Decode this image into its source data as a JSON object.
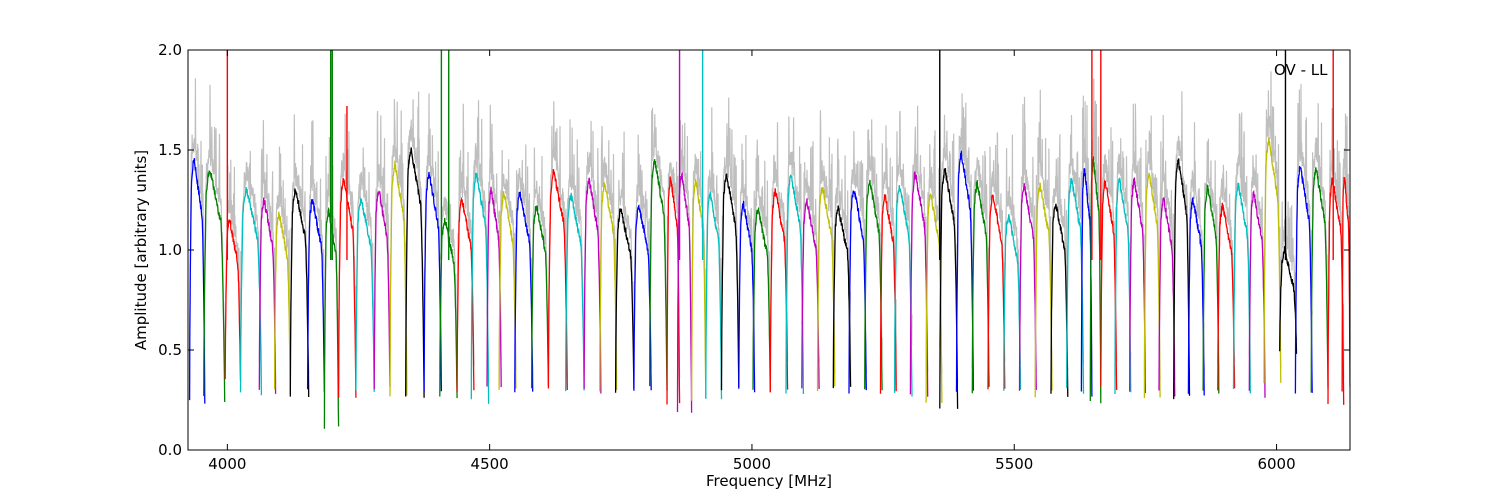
{
  "chart_data": {
    "type": "line",
    "annotation": "OV - LL",
    "xlabel": "Frequency [MHz]",
    "ylabel": "Amplitude [arbitrary units]",
    "xlim": [
      3925,
      6140
    ],
    "ylim": [
      0.0,
      2.0
    ],
    "xticks": [
      4000,
      4500,
      5000,
      5500,
      6000
    ],
    "yticks": [
      0.0,
      0.5,
      1.0,
      1.5,
      2.0
    ],
    "xtick_labels": [
      "4000",
      "4500",
      "5000",
      "5500",
      "6000"
    ],
    "ytick_labels": [
      "0.0",
      "0.5",
      "1.0",
      "1.5",
      "2.0"
    ],
    "grid": false,
    "background_color": "#bfbfbf",
    "series_colors": [
      "#0000ff",
      "#008000",
      "#ff0000",
      "#00bfbf",
      "#bf00bf",
      "#bfbf00",
      "#000000"
    ],
    "windows": [
      {
        "start": 3928,
        "end": 3957,
        "color": "#0000ff",
        "peak": 1.45,
        "floor": 0.25
      },
      {
        "start": 3955,
        "end": 3995,
        "color": "#008000",
        "peak": 1.4,
        "floor": 0.25
      },
      {
        "start": 3996,
        "end": 4025,
        "color": "#ff0000",
        "peak": 1.15,
        "floor": 0.35
      },
      {
        "start": 4025,
        "end": 4065,
        "color": "#00bfbf",
        "peak": 1.3,
        "floor": 0.28
      },
      {
        "start": 4061,
        "end": 4092,
        "color": "#bf00bf",
        "peak": 1.25,
        "floor": 0.3
      },
      {
        "start": 4090,
        "end": 4120,
        "color": "#bfbf00",
        "peak": 1.18,
        "floor": 0.3
      },
      {
        "start": 4120,
        "end": 4155,
        "color": "#000000",
        "peak": 1.3,
        "floor": 0.28
      },
      {
        "start": 4153,
        "end": 4185,
        "color": "#0000ff",
        "peak": 1.25,
        "floor": 0.3
      },
      {
        "start": 4185,
        "end": 4212,
        "color": "#008000",
        "peak": 1.2,
        "floor": 0.1
      },
      {
        "start": 4212,
        "end": 4245,
        "color": "#ff0000",
        "peak": 1.35,
        "floor": 0.28
      },
      {
        "start": 4245,
        "end": 4280,
        "color": "#00bfbf",
        "peak": 1.25,
        "floor": 0.3
      },
      {
        "start": 4280,
        "end": 4310,
        "color": "#bf00bf",
        "peak": 1.3,
        "floor": 0.3
      },
      {
        "start": 4310,
        "end": 4342,
        "color": "#bfbf00",
        "peak": 1.43,
        "floor": 0.28
      },
      {
        "start": 4340,
        "end": 4375,
        "color": "#000000",
        "peak": 1.5,
        "floor": 0.26
      },
      {
        "start": 4375,
        "end": 4408,
        "color": "#0000ff",
        "peak": 1.38,
        "floor": 0.28
      },
      {
        "start": 4405,
        "end": 4438,
        "color": "#008000",
        "peak": 1.15,
        "floor": 0.25
      },
      {
        "start": 4438,
        "end": 4470,
        "color": "#ff0000",
        "peak": 1.25,
        "floor": 0.3
      },
      {
        "start": 4465,
        "end": 4498,
        "color": "#00bfbf",
        "peak": 1.38,
        "floor": 0.25
      },
      {
        "start": 4495,
        "end": 4522,
        "color": "#bf00bf",
        "peak": 1.3,
        "floor": 0.33
      },
      {
        "start": 4518,
        "end": 4550,
        "color": "#bfbf00",
        "peak": 1.28,
        "floor": 0.3
      },
      {
        "start": 4548,
        "end": 4582,
        "color": "#0000ff",
        "peak": 1.28,
        "floor": 0.3
      },
      {
        "start": 4580,
        "end": 4612,
        "color": "#008000",
        "peak": 1.22,
        "floor": 0.3
      },
      {
        "start": 4612,
        "end": 4648,
        "color": "#ff0000",
        "peak": 1.39,
        "floor": 0.3
      },
      {
        "start": 4645,
        "end": 4680,
        "color": "#00bfbf",
        "peak": 1.27,
        "floor": 0.3
      },
      {
        "start": 4680,
        "end": 4712,
        "color": "#bf00bf",
        "peak": 1.35,
        "floor": 0.3
      },
      {
        "start": 4710,
        "end": 4742,
        "color": "#bfbf00",
        "peak": 1.33,
        "floor": 0.3
      },
      {
        "start": 4740,
        "end": 4775,
        "color": "#000000",
        "peak": 1.2,
        "floor": 0.3
      },
      {
        "start": 4775,
        "end": 4808,
        "color": "#0000ff",
        "peak": 1.22,
        "floor": 0.3
      },
      {
        "start": 4805,
        "end": 4838,
        "color": "#008000",
        "peak": 1.45,
        "floor": 0.3
      },
      {
        "start": 4838,
        "end": 4862,
        "color": "#ff0000",
        "peak": 1.36,
        "floor": 0.22
      },
      {
        "start": 4858,
        "end": 4885,
        "color": "#bf00bf",
        "peak": 1.38,
        "floor": 0.2
      },
      {
        "start": 4885,
        "end": 4912,
        "color": "#bfbf00",
        "peak": 1.35,
        "floor": 0.25
      },
      {
        "start": 4912,
        "end": 4942,
        "color": "#00bfbf",
        "peak": 1.28,
        "floor": 0.25
      },
      {
        "start": 4942,
        "end": 4975,
        "color": "#000000",
        "peak": 1.37,
        "floor": 0.3
      },
      {
        "start": 4975,
        "end": 5005,
        "color": "#0000ff",
        "peak": 1.23,
        "floor": 0.3
      },
      {
        "start": 5002,
        "end": 5035,
        "color": "#008000",
        "peak": 1.2,
        "floor": 0.3
      },
      {
        "start": 5035,
        "end": 5068,
        "color": "#ff0000",
        "peak": 1.29,
        "floor": 0.3
      },
      {
        "start": 5065,
        "end": 5098,
        "color": "#00bfbf",
        "peak": 1.37,
        "floor": 0.3
      },
      {
        "start": 5095,
        "end": 5128,
        "color": "#bf00bf",
        "peak": 1.24,
        "floor": 0.3
      },
      {
        "start": 5125,
        "end": 5158,
        "color": "#bfbf00",
        "peak": 1.31,
        "floor": 0.3
      },
      {
        "start": 5155,
        "end": 5188,
        "color": "#000000",
        "peak": 1.21,
        "floor": 0.3
      },
      {
        "start": 5185,
        "end": 5218,
        "color": "#0000ff",
        "peak": 1.3,
        "floor": 0.3
      },
      {
        "start": 5215,
        "end": 5248,
        "color": "#008000",
        "peak": 1.34,
        "floor": 0.3
      },
      {
        "start": 5245,
        "end": 5275,
        "color": "#ff0000",
        "peak": 1.27,
        "floor": 0.3
      },
      {
        "start": 5272,
        "end": 5305,
        "color": "#00bfbf",
        "peak": 1.32,
        "floor": 0.28
      },
      {
        "start": 5302,
        "end": 5335,
        "color": "#bf00bf",
        "peak": 1.38,
        "floor": 0.28
      },
      {
        "start": 5332,
        "end": 5362,
        "color": "#bfbf00",
        "peak": 1.28,
        "floor": 0.25
      },
      {
        "start": 5358,
        "end": 5392,
        "color": "#000000",
        "peak": 1.4,
        "floor": 0.21
      },
      {
        "start": 5390,
        "end": 5422,
        "color": "#0000ff",
        "peak": 1.48,
        "floor": 0.28
      },
      {
        "start": 5420,
        "end": 5452,
        "color": "#008000",
        "peak": 1.33,
        "floor": 0.3
      },
      {
        "start": 5450,
        "end": 5482,
        "color": "#ff0000",
        "peak": 1.28,
        "floor": 0.3
      },
      {
        "start": 5480,
        "end": 5512,
        "color": "#00bfbf",
        "peak": 1.17,
        "floor": 0.3
      },
      {
        "start": 5510,
        "end": 5542,
        "color": "#bf00bf",
        "peak": 1.32,
        "floor": 0.28
      },
      {
        "start": 5540,
        "end": 5572,
        "color": "#bfbf00",
        "peak": 1.32,
        "floor": 0.28
      },
      {
        "start": 5570,
        "end": 5602,
        "color": "#000000",
        "peak": 1.23,
        "floor": 0.28
      },
      {
        "start": 5600,
        "end": 5632,
        "color": "#00bfbf",
        "peak": 1.35,
        "floor": 0.3
      },
      {
        "start": 5628,
        "end": 5648,
        "color": "#0000ff",
        "peak": 1.4,
        "floor": 0.28
      },
      {
        "start": 5645,
        "end": 5665,
        "color": "#008000",
        "peak": 1.45,
        "floor": 0.25
      },
      {
        "start": 5665,
        "end": 5695,
        "color": "#ff0000",
        "peak": 1.34,
        "floor": 0.3
      },
      {
        "start": 5692,
        "end": 5722,
        "color": "#00bfbf",
        "peak": 1.35,
        "floor": 0.28
      },
      {
        "start": 5720,
        "end": 5750,
        "color": "#bf00bf",
        "peak": 1.35,
        "floor": 0.28
      },
      {
        "start": 5748,
        "end": 5778,
        "color": "#bfbf00",
        "peak": 1.38,
        "floor": 0.26
      },
      {
        "start": 5776,
        "end": 5806,
        "color": "#bf00bf",
        "peak": 1.25,
        "floor": 0.28
      },
      {
        "start": 5804,
        "end": 5834,
        "color": "#000000",
        "peak": 1.45,
        "floor": 0.26
      },
      {
        "start": 5832,
        "end": 5862,
        "color": "#0000ff",
        "peak": 1.25,
        "floor": 0.28
      },
      {
        "start": 5860,
        "end": 5890,
        "color": "#008000",
        "peak": 1.31,
        "floor": 0.3
      },
      {
        "start": 5888,
        "end": 5920,
        "color": "#ff0000",
        "peak": 1.22,
        "floor": 0.3
      },
      {
        "start": 5918,
        "end": 5950,
        "color": "#00bfbf",
        "peak": 1.32,
        "floor": 0.3
      },
      {
        "start": 5948,
        "end": 5978,
        "color": "#bf00bf",
        "peak": 1.28,
        "floor": 0.28
      },
      {
        "start": 5976,
        "end": 6008,
        "color": "#bfbf00",
        "peak": 1.55,
        "floor": 0.33
      },
      {
        "start": 6006,
        "end": 6038,
        "color": "#000000",
        "peak": 1.0,
        "floor": 0.5
      },
      {
        "start": 6036,
        "end": 6068,
        "color": "#0000ff",
        "peak": 1.41,
        "floor": 0.28
      },
      {
        "start": 6066,
        "end": 6098,
        "color": "#008000",
        "peak": 1.4,
        "floor": 0.3
      },
      {
        "start": 6098,
        "end": 6128,
        "color": "#ff0000",
        "peak": 1.35,
        "floor": 0.22
      },
      {
        "start": 6125,
        "end": 6140,
        "color": "#ff0000",
        "peak": 1.37,
        "floor": 0.3
      }
    ],
    "spikes": [
      {
        "x": 4000,
        "top": 2.0,
        "color": "#ff0000"
      },
      {
        "x": 4197,
        "top": 2.0,
        "color": "#008000"
      },
      {
        "x": 4200,
        "top": 2.0,
        "color": "#008000"
      },
      {
        "x": 4228,
        "top": 1.72,
        "color": "#ff0000"
      },
      {
        "x": 4408,
        "top": 2.0,
        "color": "#008000"
      },
      {
        "x": 4422,
        "top": 2.0,
        "color": "#008000"
      },
      {
        "x": 4862,
        "top": 2.0,
        "color": "#bf00bf"
      },
      {
        "x": 4906,
        "top": 2.0,
        "color": "#00bfbf"
      },
      {
        "x": 5358,
        "top": 2.0,
        "color": "#000000"
      },
      {
        "x": 5648,
        "top": 2.0,
        "color": "#ff0000"
      },
      {
        "x": 5665,
        "top": 2.0,
        "color": "#ff0000"
      },
      {
        "x": 6017,
        "top": 2.0,
        "color": "#000000"
      },
      {
        "x": 6108,
        "top": 2.0,
        "color": "#ff0000"
      }
    ]
  }
}
